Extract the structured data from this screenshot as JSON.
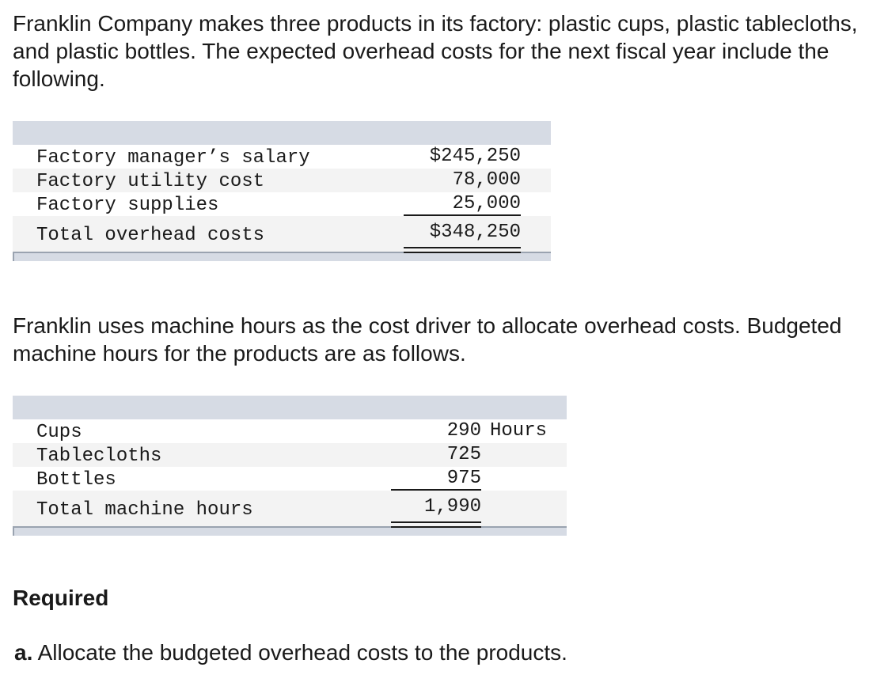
{
  "intro_text": "Franklin Company makes three products in its factory: plastic cups, plastic tablecloths, and plastic bottles. The expected overhead costs for the next fiscal year include the following.",
  "overhead_table": {
    "rows": [
      {
        "label": "Factory manager’s salary",
        "value": "$245,250"
      },
      {
        "label": "Factory utility cost",
        "value": "78,000"
      },
      {
        "label": "Factory supplies",
        "value": "25,000"
      }
    ],
    "total": {
      "label": "Total overhead costs",
      "value": "$348,250"
    }
  },
  "driver_text": "Franklin uses machine hours as the cost driver to allocate overhead costs. Budgeted machine hours for the products are as follows.",
  "hours_table": {
    "unit": "Hours",
    "rows": [
      {
        "label": "Cups",
        "value": "290"
      },
      {
        "label": "Tablecloths",
        "value": "725"
      },
      {
        "label": "Bottles",
        "value": "975"
      }
    ],
    "total": {
      "label": "Total machine hours",
      "value": "1,990"
    }
  },
  "required_heading": "Required",
  "task": {
    "letter": "a.",
    "text": "Allocate the budgeted overhead costs to the products."
  }
}
